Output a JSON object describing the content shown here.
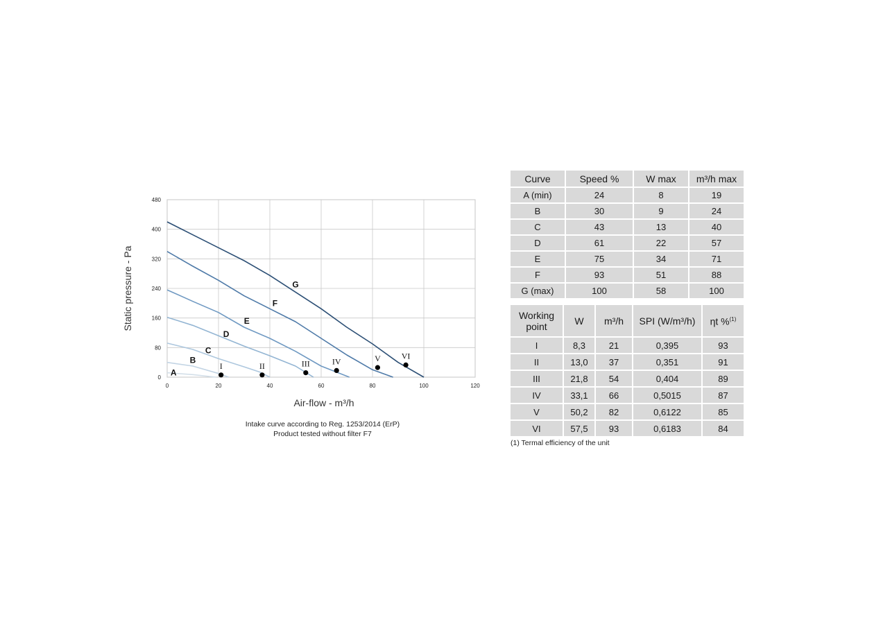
{
  "chart_data": {
    "type": "line",
    "xlabel": "Air-flow - m³/h",
    "ylabel": "Static pressure - Pa",
    "xlim": [
      0,
      120
    ],
    "ylim": [
      0,
      480
    ],
    "xticks": [
      0,
      20,
      40,
      60,
      80,
      100,
      120
    ],
    "yticks": [
      0,
      80,
      160,
      240,
      320,
      400,
      480
    ],
    "grid": true,
    "series": [
      {
        "name": "A",
        "color": "#d3dfe9",
        "x": [
          0,
          10,
          19
        ],
        "y": [
          12,
          7,
          0
        ]
      },
      {
        "name": "B",
        "color": "#c2d4e4",
        "x": [
          0,
          10,
          20,
          24
        ],
        "y": [
          40,
          30,
          10,
          0
        ]
      },
      {
        "name": "C",
        "color": "#adc7de",
        "x": [
          0,
          10,
          20,
          30,
          36,
          40
        ],
        "y": [
          92,
          75,
          50,
          28,
          14,
          0
        ]
      },
      {
        "name": "D",
        "color": "#93b5d3",
        "x": [
          0,
          10,
          20,
          30,
          40,
          50,
          57
        ],
        "y": [
          162,
          140,
          112,
          84,
          58,
          30,
          0
        ]
      },
      {
        "name": "E",
        "color": "#6f99c2",
        "x": [
          0,
          10,
          20,
          30,
          40,
          50,
          60,
          71
        ],
        "y": [
          236,
          205,
          175,
          135,
          105,
          70,
          30,
          0
        ]
      },
      {
        "name": "F",
        "color": "#4e7aa8",
        "x": [
          0,
          10,
          20,
          30,
          40,
          50,
          60,
          70,
          80,
          88
        ],
        "y": [
          340,
          300,
          262,
          220,
          185,
          150,
          105,
          60,
          20,
          0
        ]
      },
      {
        "name": "G",
        "color": "#2c4f75",
        "x": [
          0,
          10,
          20,
          30,
          40,
          50,
          60,
          70,
          80,
          90,
          100
        ],
        "y": [
          420,
          385,
          350,
          315,
          275,
          230,
          185,
          135,
          90,
          40,
          0
        ]
      }
    ],
    "curve_labels": [
      {
        "text": "A",
        "x": 2.5,
        "y": 12
      },
      {
        "text": "B",
        "x": 10,
        "y": 46
      },
      {
        "text": "C",
        "x": 16,
        "y": 72
      },
      {
        "text": "D",
        "x": 23,
        "y": 116
      },
      {
        "text": "E",
        "x": 31,
        "y": 152
      },
      {
        "text": "F",
        "x": 42,
        "y": 200
      },
      {
        "text": "G",
        "x": 50,
        "y": 250
      }
    ],
    "working_points": [
      {
        "label": "I",
        "x": 21,
        "y": 6
      },
      {
        "label": "II",
        "x": 37,
        "y": 6
      },
      {
        "label": "III",
        "x": 54,
        "y": 12
      },
      {
        "label": "IV",
        "x": 66,
        "y": 18
      },
      {
        "label": "V",
        "x": 82,
        "y": 26
      },
      {
        "label": "VI",
        "x": 93,
        "y": 33
      }
    ]
  },
  "caption": {
    "line1": "Intake curve according to Reg. 1253/2014 (ErP)",
    "line2": "Product tested without filter F7"
  },
  "curve_table": {
    "headers": [
      "Curve",
      "Speed %",
      "W max",
      "m³/h max"
    ],
    "rows": [
      [
        "A (min)",
        "24",
        "8",
        "19"
      ],
      [
        "B",
        "30",
        "9",
        "24"
      ],
      [
        "C",
        "43",
        "13",
        "40"
      ],
      [
        "D",
        "61",
        "22",
        "57"
      ],
      [
        "E",
        "75",
        "34",
        "71"
      ],
      [
        "F",
        "93",
        "51",
        "88"
      ],
      [
        "G (max)",
        "100",
        "58",
        "100"
      ]
    ]
  },
  "wp_table": {
    "headers": [
      "Working point",
      "W",
      "m³/h",
      "SPI (W/m³/h)",
      "ηt %"
    ],
    "header_sup": "(1)",
    "rows": [
      [
        "I",
        "8,3",
        "21",
        "0,395",
        "93"
      ],
      [
        "II",
        "13,0",
        "37",
        "0,351",
        "91"
      ],
      [
        "III",
        "21,8",
        "54",
        "0,404",
        "89"
      ],
      [
        "IV",
        "33,1",
        "66",
        "0,5015",
        "87"
      ],
      [
        "V",
        "50,2",
        "82",
        "0,6122",
        "85"
      ],
      [
        "VI",
        "57,5",
        "93",
        "0,6183",
        "84"
      ]
    ]
  },
  "footnote": "(1) Termal efficiency of the unit"
}
